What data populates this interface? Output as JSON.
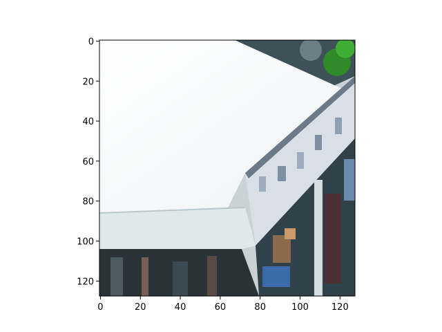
{
  "image": {
    "description_shown": "photo crop of a white tent canopy and a sign panel",
    "pixel_extent": {
      "width": 128,
      "height": 128
    }
  },
  "axes": {
    "x_ticks": [
      0,
      20,
      40,
      60,
      80,
      100,
      120
    ],
    "y_ticks": [
      0,
      20,
      40,
      60,
      80,
      100,
      120
    ],
    "x_range": [
      -0.5,
      127.5
    ],
    "y_range": [
      127.5,
      -0.5
    ]
  },
  "colors": {
    "canopy": "#f3f6f7",
    "canopy_shade": "#e6ecef",
    "valance": "#dfe9ec",
    "sign": "#d8dfe6",
    "dark": "#24323a",
    "greenery": "#2f8a2a"
  }
}
